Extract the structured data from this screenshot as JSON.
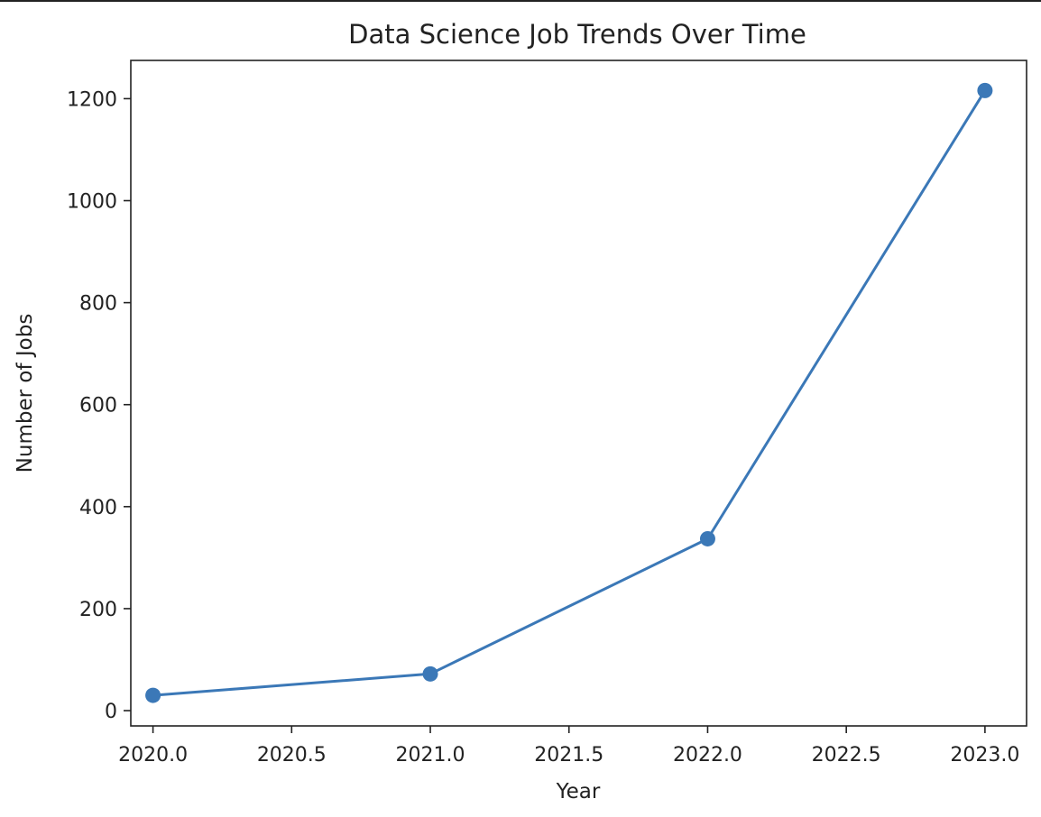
{
  "chart_data": {
    "type": "line",
    "title": "Data Science Job Trends Over Time",
    "xlabel": "Year",
    "ylabel": "Number of Jobs",
    "xlim": [
      2019.92,
      2023.15
    ],
    "ylim": [
      -30,
      1275
    ],
    "xticks": [
      2020.0,
      2020.5,
      2021.0,
      2021.5,
      2022.0,
      2022.5,
      2023.0
    ],
    "xtick_labels": [
      "2020.0",
      "2020.5",
      "2021.0",
      "2021.5",
      "2022.0",
      "2022.5",
      "2023.0"
    ],
    "yticks": [
      0,
      200,
      400,
      600,
      800,
      1000,
      1200
    ],
    "ytick_labels": [
      "0",
      "200",
      "400",
      "600",
      "800",
      "1000",
      "1200"
    ],
    "grid": false,
    "series": [
      {
        "x": [
          2020,
          2021,
          2022,
          2023
        ],
        "values": [
          30,
          72,
          337,
          1216
        ],
        "color": "#3b78b7",
        "marker": "circle"
      }
    ]
  }
}
